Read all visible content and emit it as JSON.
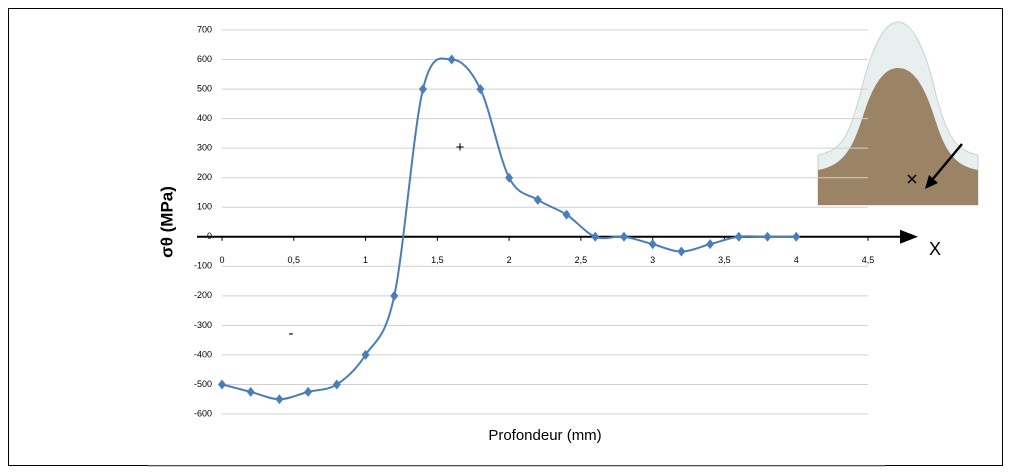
{
  "chart_data": {
    "type": "line",
    "y_label": "σθ (MPa)",
    "x_label": "Profondeur (mm)",
    "axis_arrow_label": "X",
    "annotations": [
      "+",
      "-"
    ],
    "x": [
      0,
      0.2,
      0.4,
      0.6,
      0.8,
      1.0,
      1.2,
      1.4,
      1.6,
      1.8,
      2.0,
      2.2,
      2.4,
      2.6,
      2.8,
      3.0,
      3.2,
      3.4,
      3.6,
      3.8,
      4.0
    ],
    "series": [
      {
        "color": "#4a7ebb",
        "values": [
          -500,
          -525,
          -550,
          -525,
          -500,
          -400,
          -200,
          500,
          600,
          500,
          200,
          125,
          75,
          0,
          0,
          -25,
          -50,
          -25,
          0,
          0,
          0
        ]
      }
    ],
    "xlim": [
      0,
      4.5
    ],
    "xticks": [
      0,
      {
        "value": 0.5,
        "label": "0,5"
      },
      1,
      {
        "value": 1.5,
        "label": "1,5"
      },
      2,
      {
        "value": 2.5,
        "label": "2,5"
      },
      3,
      {
        "value": 3.5,
        "label": "3,5"
      },
      4,
      {
        "value": 4.5,
        "label": "4,5"
      }
    ],
    "ylim": [
      -600,
      700
    ],
    "yticks": [
      -600,
      -500,
      -400,
      -300,
      -200,
      -100,
      0,
      100,
      200,
      300,
      400,
      500,
      600,
      700
    ],
    "grid": true
  }
}
